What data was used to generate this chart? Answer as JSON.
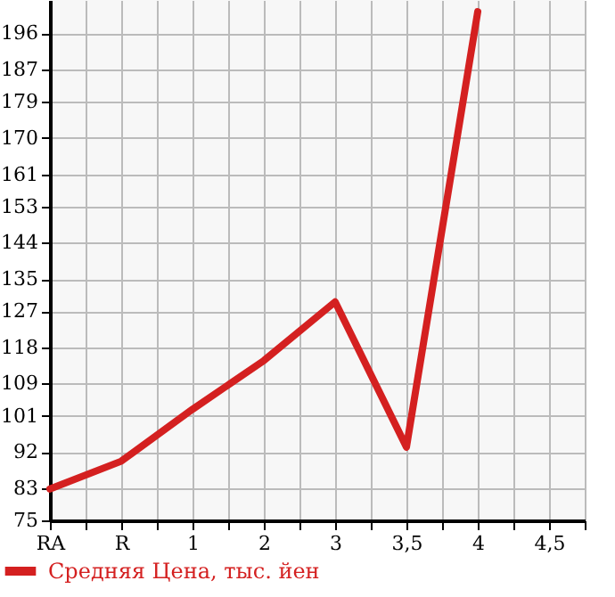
{
  "chart_data": {
    "type": "line",
    "categories": [
      "RA",
      "R",
      "1",
      "2",
      "3",
      "3,5",
      "4",
      "4,5"
    ],
    "series": [
      {
        "name": "Средняя Цена, тыс. йен",
        "color": "#d42020",
        "values": [
          82.8,
          89.7,
          102.6,
          114.7,
          129.3,
          93.2,
          201.4,
          null
        ]
      }
    ],
    "ylim": [
      75,
      204.3
    ],
    "yticks": [
      75,
      83,
      92,
      101,
      109,
      118,
      127,
      135,
      144,
      153,
      161,
      170,
      179,
      187,
      196
    ],
    "grid": true,
    "legend": "bottom left",
    "marker": "none",
    "line_style": "solid"
  }
}
